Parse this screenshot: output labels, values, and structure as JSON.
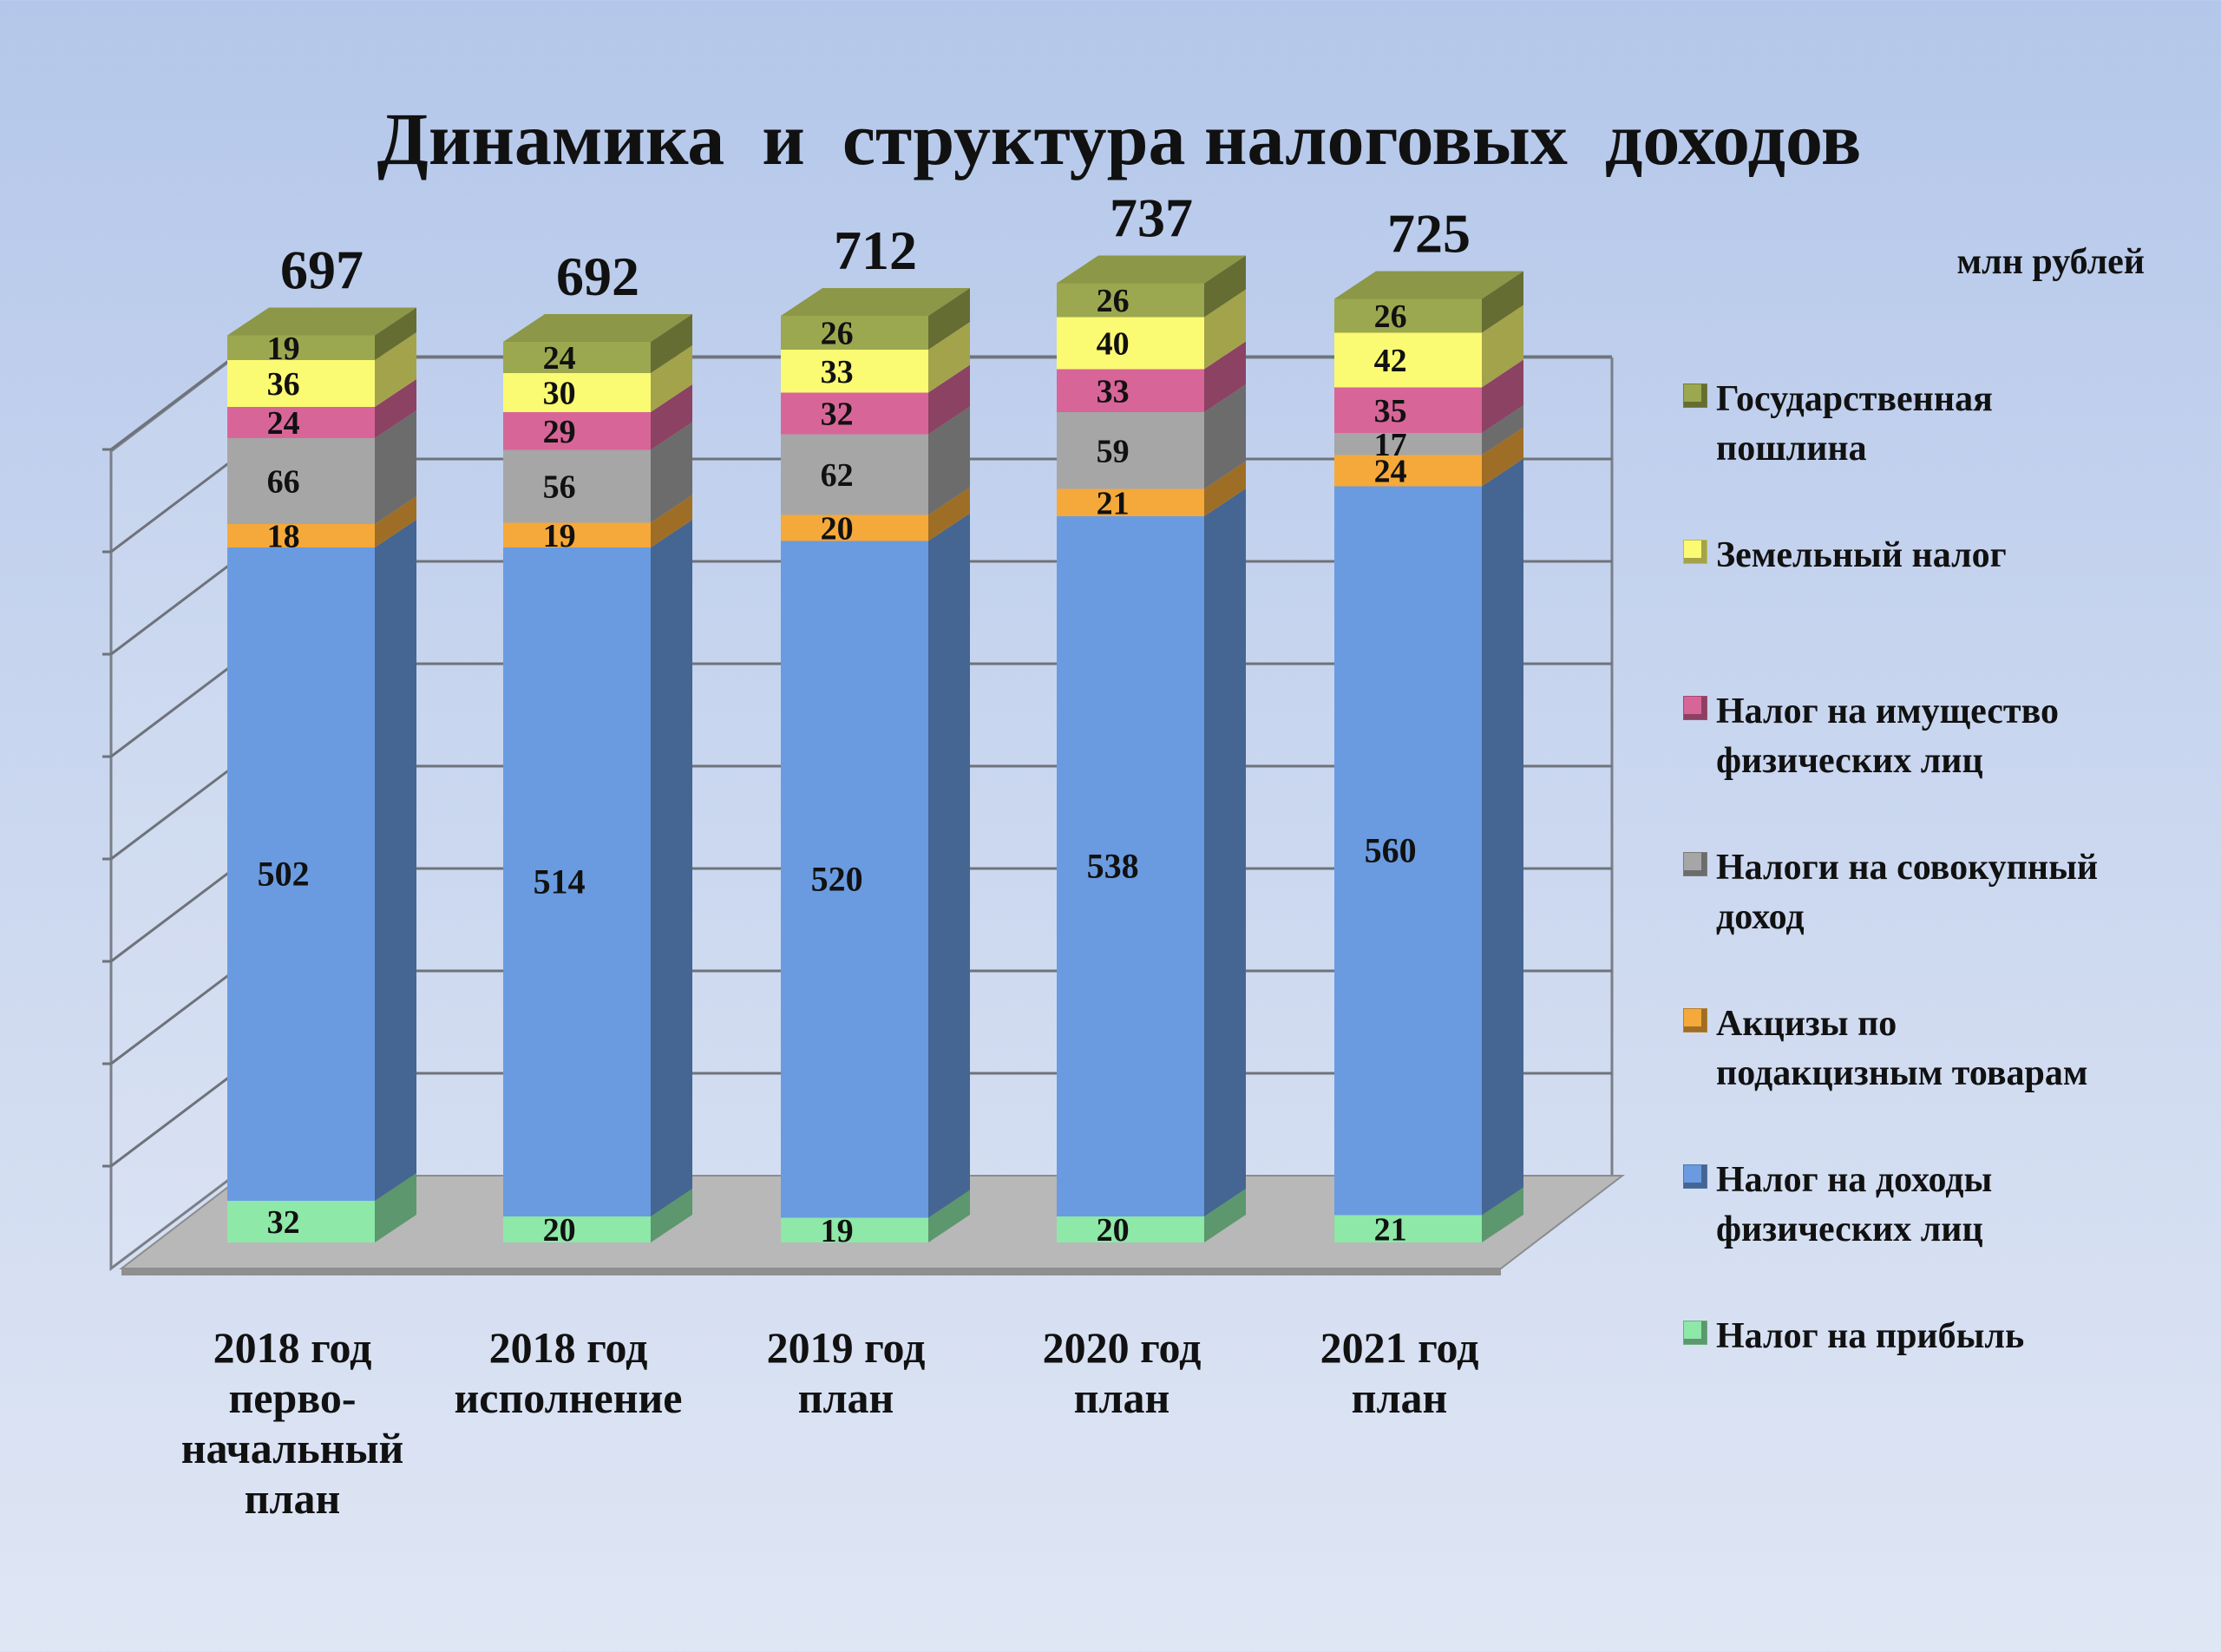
{
  "title": "Динамика  и  структура налоговых  доходов",
  "unit_label": "млн рублей",
  "colors": {
    "Налог на прибыль": "#8ee8a8",
    "Налог на доходы физических лиц": "#6a9be0",
    "Акцизы по подакцизным товарам": "#f5a93a",
    "Налоги на совокупный доход": "#a6a6a6",
    "Налог на имущество физических лиц": "#d86598",
    "Земельный налог": "#fbfa73",
    "Государственная пошлина": "#9ba84f"
  },
  "chart_data": {
    "type": "bar",
    "stacked": true,
    "three_d": true,
    "title": "Динамика  и  структура налоговых  доходов",
    "unit": "млн рублей",
    "categories": [
      "2018 год\nперво-\nначальный\nплан",
      "2018 год\nисполнение",
      "2019 год\nплан",
      "2020 год\nплан",
      "2021 год\nплан"
    ],
    "totals": [
      697,
      692,
      712,
      737,
      725
    ],
    "series": [
      {
        "name": "Налог на прибыль",
        "values": [
          32,
          20,
          19,
          20,
          21
        ]
      },
      {
        "name": "Налог на доходы физических лиц",
        "values": [
          502,
          514,
          520,
          538,
          560
        ]
      },
      {
        "name": "Акцизы по подакцизным товарам",
        "values": [
          18,
          19,
          20,
          21,
          24
        ]
      },
      {
        "name": "Налоги на совокупный доход",
        "values": [
          66,
          56,
          62,
          59,
          17
        ]
      },
      {
        "name": "Налог на имущество физических лиц",
        "values": [
          24,
          29,
          32,
          33,
          35
        ]
      },
      {
        "name": "Земельный налог",
        "values": [
          36,
          30,
          33,
          40,
          42
        ]
      },
      {
        "name": "Государственная пошлина",
        "values": [
          19,
          24,
          26,
          26,
          26
        ]
      }
    ],
    "ylim": [
      0,
      800
    ],
    "grid": true,
    "legend_position": "right"
  },
  "legend": [
    {
      "label": "Государственная\nпошлина",
      "color": "#9ba84f"
    },
    {
      "label": "Земельный налог",
      "color": "#fbfa73"
    },
    {
      "label": "Налог на имущество\nфизических лиц",
      "color": "#d86598"
    },
    {
      "label": "Налоги на совокупный\nдоход",
      "color": "#a6a6a6"
    },
    {
      "label": "Акцизы по\nподакцизным товарам",
      "color": "#f5a93a"
    },
    {
      "label": "Налог на доходы\nфизических лиц",
      "color": "#6a9be0"
    },
    {
      "label": "Налог на прибыль",
      "color": "#8ee8a8"
    }
  ]
}
